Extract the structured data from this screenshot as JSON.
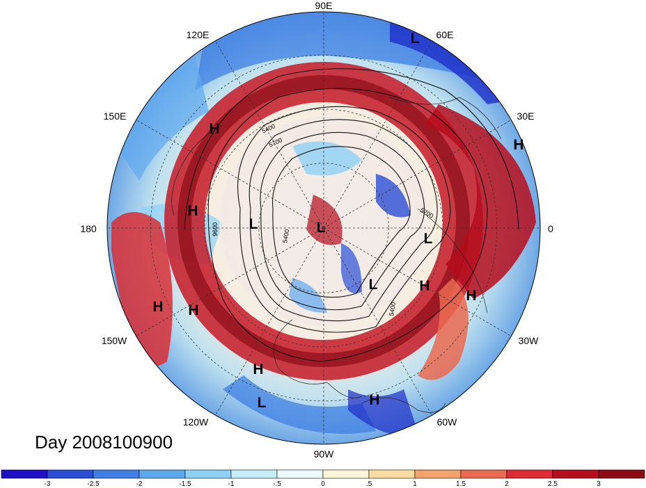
{
  "map": {
    "projection": "north-polar-stereographic",
    "longitude_labels": [
      "90E",
      "60E",
      "30E",
      "0",
      "30W",
      "60W",
      "90W",
      "120W",
      "150W",
      "180",
      "150E",
      "120E"
    ],
    "pressure_systems": [
      {
        "type": "L",
        "label": "L"
      },
      {
        "type": "H",
        "label": "H"
      },
      {
        "type": "H",
        "label": "H"
      },
      {
        "type": "H",
        "label": "H"
      },
      {
        "type": "L",
        "label": "L"
      },
      {
        "type": "L",
        "label": "L"
      },
      {
        "type": "L",
        "label": "L"
      },
      {
        "type": "L",
        "label": "L"
      },
      {
        "type": "H",
        "label": "H"
      },
      {
        "type": "H",
        "label": "H"
      },
      {
        "type": "H",
        "label": "H"
      },
      {
        "type": "H",
        "label": "H"
      },
      {
        "type": "H",
        "label": "H"
      },
      {
        "type": "L",
        "label": "L"
      },
      {
        "type": "H",
        "label": "H"
      }
    ],
    "contour_labels": [
      "5400",
      "5700",
      "9600",
      "5700",
      "5400",
      "5400"
    ],
    "date_label": "Day 2008100900"
  },
  "colorbar": {
    "tick_labels": [
      "-3",
      "-2.5",
      "-2",
      "-1.5",
      "-1",
      "-.5",
      "0",
      ".5",
      "1",
      "1.5",
      "2",
      "2.5",
      "3"
    ],
    "colors": [
      "#1f10c8",
      "#2a4fd6",
      "#3f7fe3",
      "#5ea8ef",
      "#8fd1f6",
      "#c6eefa",
      "#eefbff",
      "#fdf6d8",
      "#fbdca0",
      "#f3a26c",
      "#ea6a50",
      "#de2b35",
      "#b50d1c",
      "#8a0b16"
    ]
  },
  "colors": {
    "deep_red": "#a80f1c",
    "red": "#d82f35",
    "orange": "#ef8a5c",
    "pale": "#f7f0e4",
    "light_blue": "#a9dcf4",
    "blue": "#4d8fe0",
    "deep_blue": "#1e2ec8"
  }
}
